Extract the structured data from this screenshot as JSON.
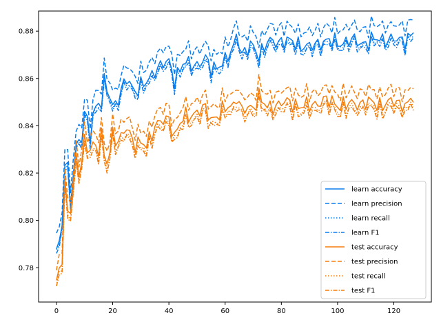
{
  "chart_data": {
    "type": "line",
    "title": "",
    "xlabel": "",
    "ylabel": "",
    "xlim": [
      -6.35,
      133.35
    ],
    "ylim": [
      0.7655,
      0.8885
    ],
    "xticks": [
      0,
      20,
      40,
      60,
      80,
      100,
      120
    ],
    "xtick_labels": [
      "0",
      "20",
      "40",
      "60",
      "80",
      "100",
      "120"
    ],
    "yticks": [
      0.78,
      0.8,
      0.82,
      0.84,
      0.86,
      0.88
    ],
    "ytick_labels": [
      "0.78",
      "0.80",
      "0.82",
      "0.84",
      "0.86",
      "0.88"
    ],
    "grid": false,
    "legend": {
      "position": "lower-right",
      "entries": [
        "learn accuracy",
        "learn precision",
        "learn recall",
        "learn F1",
        "test accuracy",
        "test precision",
        "test recall",
        "test F1"
      ]
    },
    "colors": {
      "learn": "#0a7ded",
      "test": "#f57d0a"
    },
    "x_count": 128,
    "anchors": {
      "learn_accuracy": [
        [
          0,
          0.783
        ],
        [
          2,
          0.797
        ],
        [
          3,
          0.826
        ],
        [
          5,
          0.812
        ],
        [
          7,
          0.83
        ],
        [
          9,
          0.835
        ],
        [
          10,
          0.843
        ],
        [
          12,
          0.84
        ],
        [
          14,
          0.848
        ],
        [
          16,
          0.85
        ],
        [
          18,
          0.858
        ],
        [
          20,
          0.849
        ],
        [
          22,
          0.851
        ],
        [
          25,
          0.86
        ],
        [
          28,
          0.855
        ],
        [
          32,
          0.858
        ],
        [
          35,
          0.864
        ],
        [
          40,
          0.867
        ],
        [
          42,
          0.86
        ],
        [
          45,
          0.866
        ],
        [
          50,
          0.866
        ],
        [
          53,
          0.868
        ],
        [
          55,
          0.864
        ],
        [
          58,
          0.866
        ],
        [
          60,
          0.867
        ],
        [
          63,
          0.873
        ],
        [
          64,
          0.88
        ],
        [
          66,
          0.87
        ],
        [
          70,
          0.874
        ],
        [
          72,
          0.87
        ],
        [
          75,
          0.875
        ],
        [
          80,
          0.876
        ],
        [
          85,
          0.875
        ],
        [
          90,
          0.873
        ],
        [
          95,
          0.876
        ],
        [
          100,
          0.875
        ],
        [
          105,
          0.876
        ],
        [
          110,
          0.875
        ],
        [
          115,
          0.877
        ],
        [
          120,
          0.876
        ],
        [
          125,
          0.877
        ],
        [
          127,
          0.879
        ]
      ],
      "test_accuracy": [
        [
          0,
          0.771
        ],
        [
          2,
          0.786
        ],
        [
          3,
          0.812
        ],
        [
          5,
          0.805
        ],
        [
          7,
          0.823
        ],
        [
          9,
          0.822
        ],
        [
          10,
          0.834
        ],
        [
          12,
          0.832
        ],
        [
          14,
          0.83
        ],
        [
          16,
          0.832
        ],
        [
          18,
          0.826
        ],
        [
          20,
          0.837
        ],
        [
          22,
          0.832
        ],
        [
          25,
          0.84
        ],
        [
          28,
          0.832
        ],
        [
          32,
          0.832
        ],
        [
          35,
          0.84
        ],
        [
          40,
          0.843
        ],
        [
          42,
          0.836
        ],
        [
          45,
          0.843
        ],
        [
          50,
          0.846
        ],
        [
          53,
          0.847
        ],
        [
          55,
          0.843
        ],
        [
          58,
          0.845
        ],
        [
          60,
          0.847
        ],
        [
          63,
          0.849
        ],
        [
          64,
          0.853
        ],
        [
          66,
          0.846
        ],
        [
          70,
          0.848
        ],
        [
          72,
          0.853
        ],
        [
          75,
          0.847
        ],
        [
          80,
          0.85
        ],
        [
          85,
          0.849
        ],
        [
          90,
          0.848
        ],
        [
          95,
          0.851
        ],
        [
          100,
          0.849
        ],
        [
          105,
          0.849
        ],
        [
          110,
          0.85
        ],
        [
          115,
          0.849
        ],
        [
          120,
          0.85
        ],
        [
          125,
          0.849
        ],
        [
          127,
          0.852
        ]
      ]
    },
    "series_offsets": {
      "learn_precision": 0.006,
      "learn_recall": -0.001,
      "learn_f1": -0.002,
      "test_precision": 0.005,
      "test_recall": -0.002,
      "test_f1": -0.003
    },
    "series": [
      {
        "name": "learn accuracy",
        "group": "learn",
        "base": "learn_accuracy",
        "offset_key": "",
        "dash": ""
      },
      {
        "name": "learn precision",
        "group": "learn",
        "base": "learn_accuracy",
        "offset_key": "learn_precision",
        "dash": "6,3"
      },
      {
        "name": "learn recall",
        "group": "learn",
        "base": "learn_accuracy",
        "offset_key": "learn_recall",
        "dash": "1.5,2.5"
      },
      {
        "name": "learn F1",
        "group": "learn",
        "base": "learn_accuracy",
        "offset_key": "learn_f1",
        "dash": "6,2,1.5,2"
      },
      {
        "name": "test accuracy",
        "group": "test",
        "base": "test_accuracy",
        "offset_key": "",
        "dash": ""
      },
      {
        "name": "test precision",
        "group": "test",
        "base": "test_accuracy",
        "offset_key": "test_precision",
        "dash": "6,3"
      },
      {
        "name": "test recall",
        "group": "test",
        "base": "test_accuracy",
        "offset_key": "test_recall",
        "dash": "1.5,2.5"
      },
      {
        "name": "test F1",
        "group": "test",
        "base": "test_accuracy",
        "offset_key": "test_f1",
        "dash": "6,2,1.5,2"
      }
    ]
  }
}
